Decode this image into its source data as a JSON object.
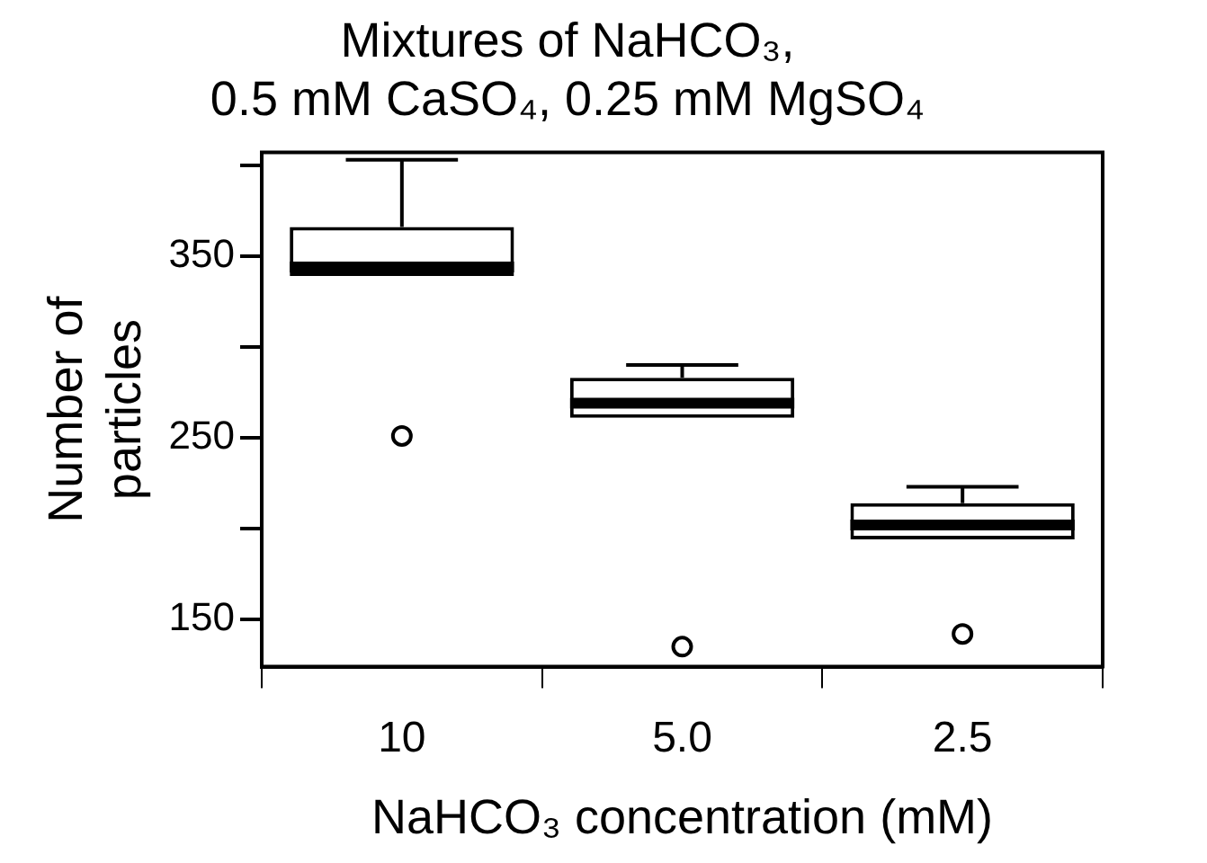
{
  "chart_data": {
    "type": "box",
    "title": "Mixtures of NaHCO₃,\n0.5 mM CaSO₄, 0.25 mM MgSO₄",
    "xlabel": "NaHCO₃ concentration (mM)",
    "ylabel": "Number of\nparticles",
    "categories": [
      "10",
      "5.0",
      "2.5"
    ],
    "boxes": [
      {
        "low": 339,
        "q1": 339,
        "median": 344,
        "q3": 366,
        "high": 403,
        "outliers": [
          251
        ]
      },
      {
        "low": 261,
        "q1": 261,
        "median": 269,
        "q3": 283,
        "high": 290,
        "outliers": [
          135
        ]
      },
      {
        "low": 194,
        "q1": 194,
        "median": 202,
        "q3": 214,
        "high": 223,
        "outliers": [
          142
        ]
      }
    ],
    "ylim": [
      124,
      407
    ],
    "yticks": [
      150,
      {
        "value": 200,
        "label": null
      },
      250,
      {
        "value": 300,
        "label": null
      },
      350,
      {
        "value": 400,
        "label": null
      }
    ],
    "grid": false,
    "legend": false
  }
}
